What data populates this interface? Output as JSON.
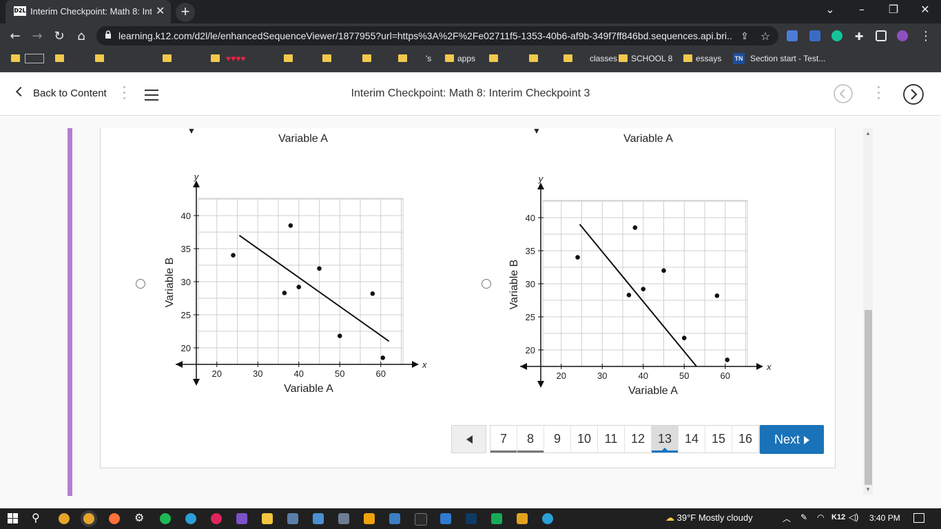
{
  "browser": {
    "tab_title": "Interim Checkpoint: Math 8: Inter",
    "tab_favicon": "D2L",
    "url": "learning.k12.com/d2l/le/enhancedSequenceViewer/1877955?url=https%3A%2F%2Fe02711f5-1353-40b6-af9b-349f7ff846bd.sequences.api.bri...",
    "bookmarks": [
      "'s",
      "apps",
      "classes",
      "SCHOOL 8",
      "essays",
      "Section start - Test..."
    ],
    "bookmark_badge": "TN"
  },
  "header": {
    "back_label": "Back to Content",
    "title": "Interim Checkpoint: Math 8: Interim Checkpoint 3"
  },
  "question": {
    "options": [
      {
        "top_label": "Variable A",
        "chart_data": {
          "type": "scatter",
          "xlabel": "Variable A",
          "ylabel": "Variable B",
          "x_axis_letter": "x",
          "y_axis_letter": "y",
          "x_ticks": [
            20,
            30,
            40,
            50,
            60
          ],
          "y_ticks": [
            20,
            25,
            30,
            35,
            40
          ],
          "points": [
            [
              24,
              34
            ],
            [
              36.5,
              28.3
            ],
            [
              38,
              38.5
            ],
            [
              40,
              29.2
            ],
            [
              45,
              32
            ],
            [
              50,
              21.8
            ],
            [
              58,
              28.2
            ],
            [
              60.5,
              18.5
            ]
          ],
          "trend_line": [
            [
              25.5,
              37
            ],
            [
              62,
              21
            ]
          ]
        }
      },
      {
        "top_label": "Variable A",
        "chart_data": {
          "type": "scatter",
          "xlabel": "Variable A",
          "ylabel": "Variable B",
          "x_axis_letter": "x",
          "y_axis_letter": "y",
          "x_ticks": [
            20,
            30,
            40,
            50,
            60
          ],
          "y_ticks": [
            20,
            25,
            30,
            35,
            40
          ],
          "points": [
            [
              24,
              34
            ],
            [
              36.5,
              28.3
            ],
            [
              38,
              38.5
            ],
            [
              40,
              29.2
            ],
            [
              45,
              32
            ],
            [
              50,
              21.8
            ],
            [
              58,
              28.2
            ],
            [
              60.5,
              18.5
            ]
          ],
          "trend_line": [
            [
              24.5,
              39
            ],
            [
              53,
              17.5
            ]
          ]
        }
      }
    ]
  },
  "pagination": {
    "pages": [
      "7",
      "8",
      "9",
      "10",
      "11",
      "12",
      "13",
      "14",
      "15",
      "16"
    ],
    "current": "13",
    "next_label": "Next"
  },
  "taskbar": {
    "weather": "39°F  Mostly cloudy",
    "tray_label": "K12",
    "time": "3:40 PM"
  }
}
